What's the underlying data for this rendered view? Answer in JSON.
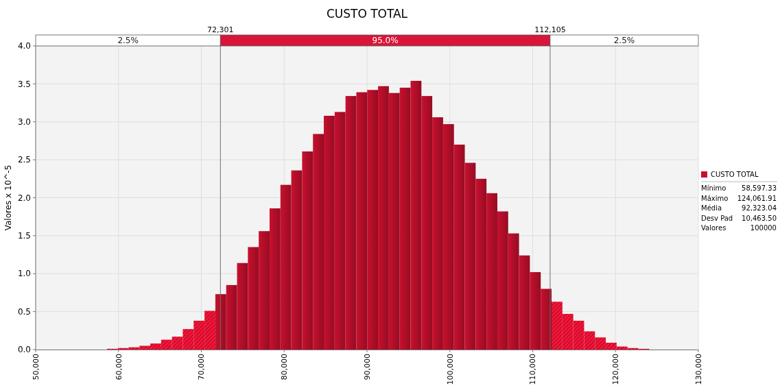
{
  "chart_data": {
    "type": "histogram",
    "title": "CUSTO TOTAL",
    "ylabel": "Valores x 10^-5",
    "bins": [
      58597,
      59907,
      61216,
      62525,
      63834,
      65144,
      66453,
      67762,
      69072,
      70381,
      71690,
      73000,
      74309,
      75618,
      76927,
      78237,
      79546,
      80855,
      82165,
      83474,
      84783,
      86092,
      87402,
      88711,
      90020,
      91330,
      92639,
      93948,
      95257,
      96567,
      97876,
      99185,
      100495,
      101804,
      103113,
      104423,
      105732,
      107041,
      108350,
      109660,
      110969,
      112278,
      113588,
      114897,
      116206,
      117515,
      118825,
      120134,
      121443,
      122753,
      124062
    ],
    "series": [
      {
        "name": "CUSTO TOTAL",
        "color": "#c8102e",
        "values": [
          0.01,
          0.02,
          0.03,
          0.05,
          0.08,
          0.13,
          0.17,
          0.27,
          0.38,
          0.51,
          0.73,
          0.85,
          1.14,
          1.35,
          1.56,
          1.86,
          2.17,
          2.36,
          2.61,
          2.84,
          3.08,
          3.13,
          3.34,
          3.39,
          3.42,
          3.47,
          3.38,
          3.45,
          3.54,
          3.34,
          3.06,
          2.97,
          2.7,
          2.46,
          2.25,
          2.06,
          1.82,
          1.53,
          1.24,
          1.02,
          0.8,
          0.63,
          0.47,
          0.38,
          0.24,
          0.16,
          0.09,
          0.04,
          0.02,
          0.01
        ]
      }
    ],
    "xlim": [
      50000,
      130000
    ],
    "xticks": [
      {
        "value": 50000,
        "label": "50,000"
      },
      {
        "value": 60000,
        "label": "60,000"
      },
      {
        "value": 70000,
        "label": "70,000"
      },
      {
        "value": 80000,
        "label": "80,000"
      },
      {
        "value": 90000,
        "label": "90,000"
      },
      {
        "value": 100000,
        "label": "100,000"
      },
      {
        "value": 110000,
        "label": "110,000"
      },
      {
        "value": 120000,
        "label": "120,000"
      },
      {
        "value": 130000,
        "label": "130,000"
      }
    ],
    "ylim": [
      0,
      4
    ],
    "yticks": [
      {
        "value": 0,
        "label": "0.0"
      },
      {
        "value": 0.5,
        "label": "0.5"
      },
      {
        "value": 1,
        "label": "1.0"
      },
      {
        "value": 1.5,
        "label": "1.5"
      },
      {
        "value": 2,
        "label": "2.0"
      },
      {
        "value": 2.5,
        "label": "2.5"
      },
      {
        "value": 3,
        "label": "3.0"
      },
      {
        "value": 3.5,
        "label": "3.5"
      },
      {
        "value": 4,
        "label": "4.0"
      }
    ],
    "ref_lines": [
      {
        "axis": "x",
        "value": 72301,
        "label": "72,301",
        "color": "#707070"
      },
      {
        "axis": "x",
        "value": 112105,
        "label": "112,105",
        "color": "#707070"
      }
    ],
    "annotations": [
      "2.5%",
      "95.0%",
      "2.5%",
      "Mínimo",
      "58,597.33",
      "Máximo",
      "124,061.91",
      "Média",
      "92,323.04",
      "Desv Pad",
      "10,463.50",
      "Valores",
      "100000"
    ],
    "grid": true,
    "legend": "right"
  }
}
